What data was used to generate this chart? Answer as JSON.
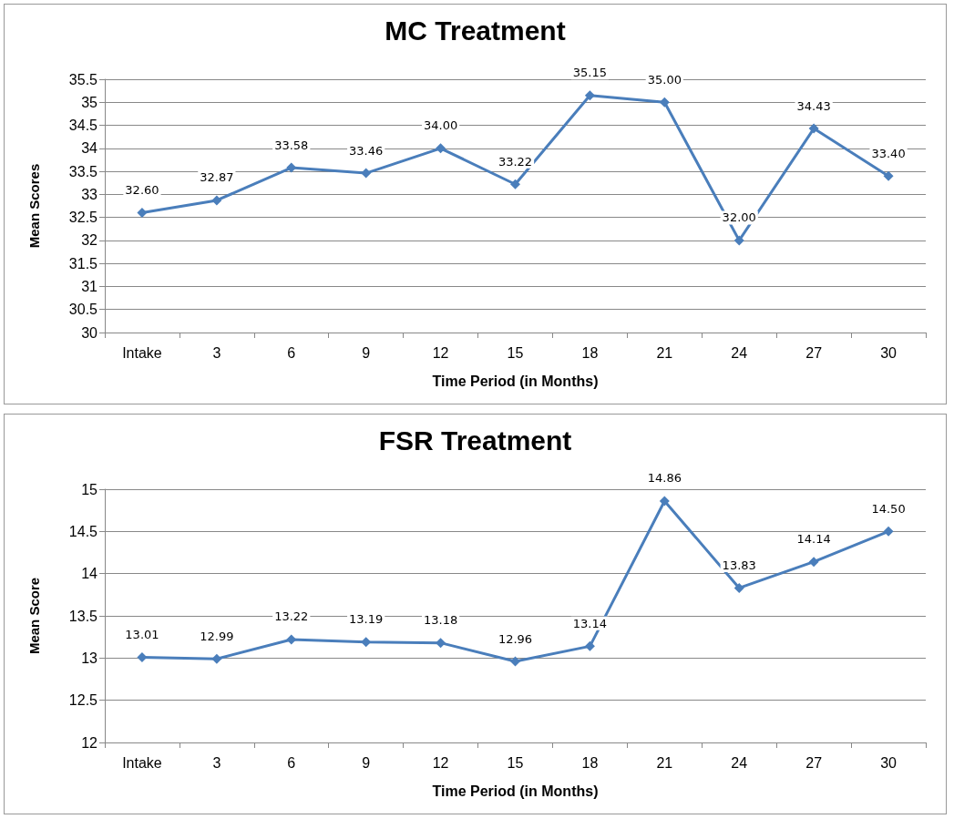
{
  "chart_data": [
    {
      "type": "line",
      "title": "MC Treatment",
      "xlabel": "Time Period (in Months)",
      "ylabel": "Mean Scores",
      "categories": [
        "Intake",
        "3",
        "6",
        "9",
        "12",
        "15",
        "18",
        "21",
        "24",
        "27",
        "30"
      ],
      "series": [
        {
          "color": "#4a7ebb",
          "values": [
            32.6,
            32.87,
            33.58,
            33.46,
            34.0,
            33.22,
            35.15,
            35.0,
            32.0,
            34.43,
            33.4
          ],
          "value_labels": [
            "32.60",
            "32.87",
            "33.58",
            "33.46",
            "34.00",
            "33.22",
            "35.15",
            "35.00",
            "32.00",
            "34.43",
            "33.40"
          ]
        }
      ],
      "ylim": [
        30,
        35.5
      ],
      "yticks": [
        30,
        30.5,
        31,
        31.5,
        32,
        32.5,
        33,
        33.5,
        34,
        34.5,
        35,
        35.5
      ],
      "grid": "y",
      "marker": "diamond",
      "line_style": "solid"
    },
    {
      "type": "line",
      "title": "FSR Treatment",
      "xlabel": "Time Period (in Months)",
      "ylabel": "Mean Score",
      "categories": [
        "Intake",
        "3",
        "6",
        "9",
        "12",
        "15",
        "18",
        "21",
        "24",
        "27",
        "30"
      ],
      "series": [
        {
          "color": "#4a7ebb",
          "values": [
            13.01,
            12.99,
            13.22,
            13.19,
            13.18,
            12.96,
            13.14,
            14.86,
            13.83,
            14.14,
            14.5
          ],
          "value_labels": [
            "13.01",
            "12.99",
            "13.22",
            "13.19",
            "13.18",
            "12.96",
            "13.14",
            "14.86",
            "13.83",
            "14.14",
            "14.50"
          ]
        }
      ],
      "ylim": [
        12,
        15
      ],
      "yticks": [
        12,
        12.5,
        13,
        13.5,
        14,
        14.5,
        15
      ],
      "grid": "y",
      "marker": "diamond",
      "line_style": "solid"
    }
  ]
}
